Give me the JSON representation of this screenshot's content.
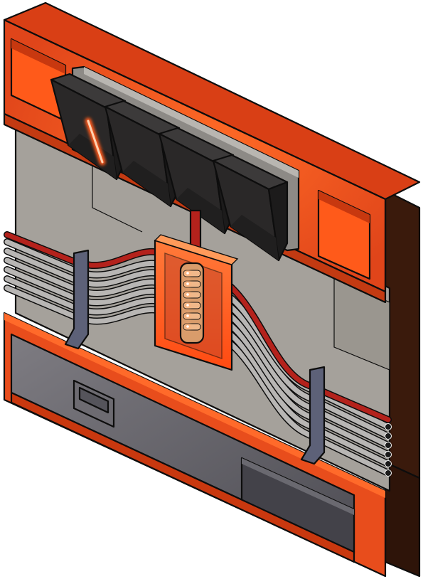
{
  "colors": {
    "frame_red": "#e84d1c",
    "frame_red_dark": "#c33a12",
    "frame_side": "#3a1a0c",
    "frame_side_light": "#5a2810",
    "glow_orange": "#ff5a1a",
    "panel_grey": "#a5a19b",
    "panel_grey_dark": "#8f8b86",
    "tray_grey": "#5f5e64",
    "tray_grey_light": "#8e8c91",
    "module_black": "#2a2828",
    "module_face": "#3c3a3a",
    "cable_light": "#b8b6b4",
    "cable_red": "#b4221c",
    "clamp_blue": "#5d6178",
    "led_glow": "#ffb27a",
    "outline": "#0d0d0d"
  },
  "icons": {
    "top_frame": "chassis-frame-icon",
    "modules": "switch-module-icon",
    "indicator": "status-light-icon",
    "cables": "cable-bundle-icon",
    "clamps": "cable-clamp-icon",
    "hub": "connector-hub-icon",
    "tray": "drawer-tray-icon"
  },
  "modules": [
    {
      "active": true
    },
    {
      "active": false
    },
    {
      "active": false
    },
    {
      "active": false
    }
  ],
  "hub_leds": 6
}
